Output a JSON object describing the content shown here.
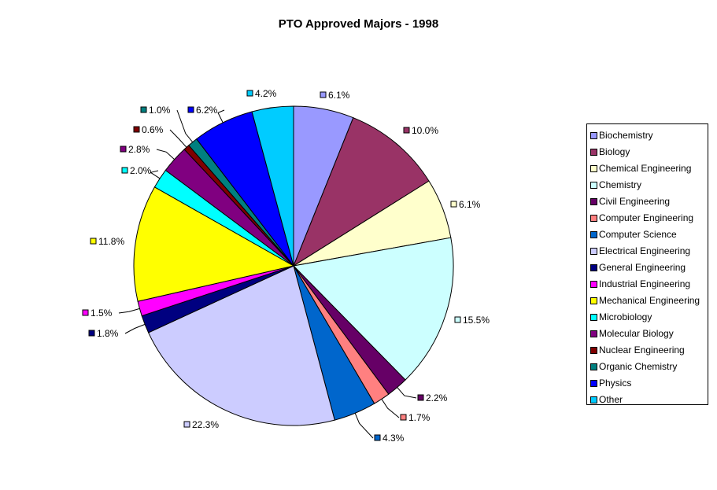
{
  "chart_data": {
    "type": "pie",
    "title": "PTO Approved Majors - 1998",
    "slices": [
      {
        "name": "Biochemistry",
        "value": 6.1,
        "label": "6.1%",
        "color": "#9999ff"
      },
      {
        "name": "Biology",
        "value": 10.0,
        "label": "10.0%",
        "color": "#993366"
      },
      {
        "name": "Chemical Engineering",
        "value": 6.1,
        "label": "6.1%",
        "color": "#ffffcc"
      },
      {
        "name": "Chemistry",
        "value": 15.5,
        "label": "15.5%",
        "color": "#ccffff"
      },
      {
        "name": "Civil Engineering",
        "value": 2.2,
        "label": "2.2%",
        "color": "#660066"
      },
      {
        "name": "Computer Engineering",
        "value": 1.7,
        "label": "1.7%",
        "color": "#ff8080"
      },
      {
        "name": "Computer Science",
        "value": 4.3,
        "label": "4.3%",
        "color": "#0066cc"
      },
      {
        "name": "Electrical Engineering",
        "value": 22.3,
        "label": "22.3%",
        "color": "#ccccff"
      },
      {
        "name": "General Engineering",
        "value": 1.8,
        "label": "1.8%",
        "color": "#000080"
      },
      {
        "name": "Industrial Engineering",
        "value": 1.5,
        "label": "1.5%",
        "color": "#ff00ff"
      },
      {
        "name": "Mechanical Engineering",
        "value": 11.8,
        "label": "11.8%",
        "color": "#ffff00"
      },
      {
        "name": "Microbiology",
        "value": 2.0,
        "label": "2.0%",
        "color": "#00ffff"
      },
      {
        "name": "Molecular Biology",
        "value": 2.8,
        "label": "2.8%",
        "color": "#800080"
      },
      {
        "name": "Nuclear Engineering",
        "value": 0.6,
        "label": "0.6%",
        "color": "#800000"
      },
      {
        "name": "Organic Chemistry",
        "value": 1.0,
        "label": "1.0%",
        "color": "#008080"
      },
      {
        "name": "Physics",
        "value": 6.2,
        "label": "6.2%",
        "color": "#0000ff"
      },
      {
        "name": "Other",
        "value": 4.2,
        "label": "4.2%",
        "color": "#00ccff"
      }
    ],
    "legend_position": "right",
    "start_angle_deg": 0,
    "direction": "clockwise"
  }
}
